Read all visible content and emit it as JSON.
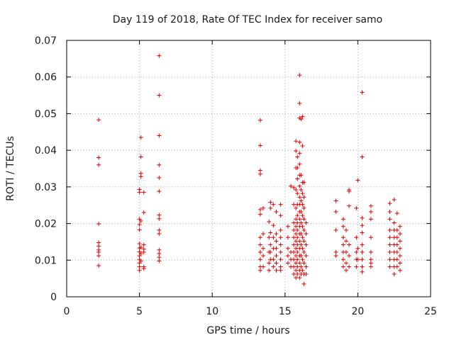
{
  "chart_data": {
    "type": "scatter",
    "title": "Day 119 of 2018, Rate Of TEC Index for receiver samo",
    "xlabel": "GPS time / hours",
    "ylabel": "ROTI / TECUs",
    "xlim": [
      0,
      25
    ],
    "ylim": [
      0,
      0.07
    ],
    "xticks": [
      0,
      5,
      10,
      15,
      20,
      25
    ],
    "xtick_labels": [
      "0",
      "5",
      "10",
      "15",
      "20",
      "25"
    ],
    "yticks": [
      0,
      0.01,
      0.02,
      0.03,
      0.04,
      0.05,
      0.06,
      0.07
    ],
    "ytick_labels": [
      "0",
      "0.01",
      "0.02",
      "0.03",
      "0.04",
      "0.05",
      "0.06",
      "0.07"
    ],
    "grid": true,
    "marker": "+",
    "color": "#e00000",
    "series": [
      {
        "name": "ROTI",
        "points": [
          [
            2.2,
            0.0483
          ],
          [
            2.2,
            0.038
          ],
          [
            2.2,
            0.036
          ],
          [
            2.2,
            0.0199
          ],
          [
            2.2,
            0.0148
          ],
          [
            2.2,
            0.0138
          ],
          [
            2.2,
            0.0128
          ],
          [
            2.2,
            0.0122
          ],
          [
            2.2,
            0.0112
          ],
          [
            2.2,
            0.0085
          ],
          [
            5.0,
            0.0293
          ],
          [
            5.0,
            0.0285
          ],
          [
            5.0,
            0.0212
          ],
          [
            5.0,
            0.0197
          ],
          [
            5.0,
            0.0183
          ],
          [
            5.0,
            0.0145
          ],
          [
            5.0,
            0.0133
          ],
          [
            5.0,
            0.0123
          ],
          [
            5.0,
            0.0112
          ],
          [
            5.0,
            0.0102
          ],
          [
            5.0,
            0.0092
          ],
          [
            5.0,
            0.0082
          ],
          [
            5.0,
            0.0072
          ],
          [
            5.1,
            0.0435
          ],
          [
            5.1,
            0.0382
          ],
          [
            5.1,
            0.0337
          ],
          [
            5.1,
            0.0328
          ],
          [
            5.1,
            0.0207
          ],
          [
            5.1,
            0.0135
          ],
          [
            5.1,
            0.0118
          ],
          [
            5.1,
            0.0098
          ],
          [
            5.3,
            0.0285
          ],
          [
            5.3,
            0.023
          ],
          [
            5.3,
            0.0142
          ],
          [
            5.3,
            0.013
          ],
          [
            5.3,
            0.0122
          ],
          [
            5.3,
            0.0082
          ],
          [
            5.3,
            0.0077
          ],
          [
            6.35,
            0.0658
          ],
          [
            6.35,
            0.055
          ],
          [
            6.35,
            0.044
          ],
          [
            6.35,
            0.036
          ],
          [
            6.35,
            0.0325
          ],
          [
            6.35,
            0.0288
          ],
          [
            6.35,
            0.0223
          ],
          [
            6.35,
            0.0213
          ],
          [
            6.35,
            0.0182
          ],
          [
            6.35,
            0.0172
          ],
          [
            6.35,
            0.0128
          ],
          [
            6.35,
            0.0118
          ],
          [
            6.35,
            0.0108
          ],
          [
            6.35,
            0.0098
          ],
          [
            13.3,
            0.0482
          ],
          [
            13.3,
            0.0413
          ],
          [
            13.3,
            0.0345
          ],
          [
            13.3,
            0.0335
          ],
          [
            13.3,
            0.0238
          ],
          [
            13.3,
            0.0225
          ],
          [
            13.3,
            0.0162
          ],
          [
            13.3,
            0.0142
          ],
          [
            13.3,
            0.0122
          ],
          [
            13.3,
            0.0102
          ],
          [
            13.3,
            0.0082
          ],
          [
            13.3,
            0.0072
          ],
          [
            13.5,
            0.0242
          ],
          [
            13.5,
            0.0172
          ],
          [
            13.5,
            0.0132
          ],
          [
            13.5,
            0.0112
          ],
          [
            13.5,
            0.0082
          ],
          [
            13.9,
            0.0205
          ],
          [
            13.9,
            0.0162
          ],
          [
            13.9,
            0.0122
          ],
          [
            13.9,
            0.0092
          ],
          [
            13.9,
            0.0072
          ],
          [
            14.0,
            0.0258
          ],
          [
            14.0,
            0.0242
          ],
          [
            14.0,
            0.0175
          ],
          [
            14.0,
            0.0142
          ],
          [
            14.0,
            0.0122
          ],
          [
            14.0,
            0.0102
          ],
          [
            14.2,
            0.0252
          ],
          [
            14.2,
            0.0195
          ],
          [
            14.2,
            0.0162
          ],
          [
            14.2,
            0.0132
          ],
          [
            14.2,
            0.0102
          ],
          [
            14.2,
            0.0082
          ],
          [
            14.4,
            0.0232
          ],
          [
            14.4,
            0.0172
          ],
          [
            14.4,
            0.0152
          ],
          [
            14.4,
            0.0132
          ],
          [
            14.4,
            0.0112
          ],
          [
            14.4,
            0.0092
          ],
          [
            14.4,
            0.0072
          ],
          [
            14.7,
            0.0252
          ],
          [
            14.7,
            0.0222
          ],
          [
            14.7,
            0.0182
          ],
          [
            14.7,
            0.0162
          ],
          [
            14.7,
            0.0142
          ],
          [
            14.7,
            0.0122
          ],
          [
            14.7,
            0.0102
          ],
          [
            14.7,
            0.0082
          ],
          [
            14.7,
            0.0072
          ],
          [
            15.2,
            0.0192
          ],
          [
            15.2,
            0.0162
          ],
          [
            15.2,
            0.0132
          ],
          [
            15.2,
            0.0112
          ],
          [
            15.2,
            0.0092
          ],
          [
            15.4,
            0.0302
          ],
          [
            15.4,
            0.0122
          ],
          [
            15.4,
            0.0102
          ],
          [
            15.4,
            0.0082
          ],
          [
            15.6,
            0.0298
          ],
          [
            15.6,
            0.0252
          ],
          [
            15.6,
            0.0202
          ],
          [
            15.6,
            0.0182
          ],
          [
            15.6,
            0.0162
          ],
          [
            15.6,
            0.0142
          ],
          [
            15.6,
            0.0122
          ],
          [
            15.6,
            0.0102
          ],
          [
            15.6,
            0.0082
          ],
          [
            15.6,
            0.0062
          ],
          [
            15.75,
            0.0425
          ],
          [
            15.75,
            0.0398
          ],
          [
            15.75,
            0.0352
          ],
          [
            15.75,
            0.0292
          ],
          [
            15.75,
            0.0242
          ],
          [
            15.75,
            0.0212
          ],
          [
            15.75,
            0.0192
          ],
          [
            15.75,
            0.0172
          ],
          [
            15.75,
            0.0152
          ],
          [
            15.75,
            0.0132
          ],
          [
            15.75,
            0.0112
          ],
          [
            15.75,
            0.0092
          ],
          [
            15.75,
            0.0072
          ],
          [
            15.75,
            0.0052
          ],
          [
            15.85,
            0.0382
          ],
          [
            15.85,
            0.0352
          ],
          [
            15.85,
            0.0322
          ],
          [
            15.85,
            0.0282
          ],
          [
            15.85,
            0.0252
          ],
          [
            15.85,
            0.0222
          ],
          [
            15.85,
            0.0202
          ],
          [
            15.85,
            0.0182
          ],
          [
            15.85,
            0.0162
          ],
          [
            15.85,
            0.0142
          ],
          [
            15.85,
            0.0122
          ],
          [
            15.85,
            0.0102
          ],
          [
            15.85,
            0.0082
          ],
          [
            15.85,
            0.0062
          ],
          [
            16.0,
            0.0605
          ],
          [
            16.0,
            0.0528
          ],
          [
            16.0,
            0.0488
          ],
          [
            16.0,
            0.0422
          ],
          [
            16.0,
            0.0392
          ],
          [
            16.0,
            0.0362
          ],
          [
            16.0,
            0.0332
          ],
          [
            16.0,
            0.0302
          ],
          [
            16.0,
            0.0272
          ],
          [
            16.0,
            0.0252
          ],
          [
            16.0,
            0.0232
          ],
          [
            16.0,
            0.0212
          ],
          [
            16.0,
            0.0192
          ],
          [
            16.0,
            0.0172
          ],
          [
            16.0,
            0.0152
          ],
          [
            16.0,
            0.0132
          ],
          [
            16.0,
            0.0112
          ],
          [
            16.0,
            0.0092
          ],
          [
            16.0,
            0.0072
          ],
          [
            16.0,
            0.0052
          ],
          [
            16.1,
            0.0485
          ],
          [
            16.1,
            0.0332
          ],
          [
            16.1,
            0.0292
          ],
          [
            16.1,
            0.0262
          ],
          [
            16.1,
            0.0232
          ],
          [
            16.1,
            0.0202
          ],
          [
            16.1,
            0.0172
          ],
          [
            16.1,
            0.0142
          ],
          [
            16.1,
            0.0112
          ],
          [
            16.1,
            0.0082
          ],
          [
            16.1,
            0.0062
          ],
          [
            16.2,
            0.0492
          ],
          [
            16.2,
            0.0412
          ],
          [
            16.2,
            0.0312
          ],
          [
            16.2,
            0.0282
          ],
          [
            16.2,
            0.0252
          ],
          [
            16.2,
            0.0222
          ],
          [
            16.2,
            0.0192
          ],
          [
            16.2,
            0.0162
          ],
          [
            16.2,
            0.0132
          ],
          [
            16.2,
            0.0102
          ],
          [
            16.2,
            0.0072
          ],
          [
            16.3,
            0.0312
          ],
          [
            16.3,
            0.0272
          ],
          [
            16.3,
            0.0242
          ],
          [
            16.3,
            0.0212
          ],
          [
            16.3,
            0.0182
          ],
          [
            16.3,
            0.0152
          ],
          [
            16.3,
            0.0122
          ],
          [
            16.3,
            0.0092
          ],
          [
            16.3,
            0.0062
          ],
          [
            16.3,
            0.0035
          ],
          [
            16.45,
            0.0202
          ],
          [
            16.45,
            0.0172
          ],
          [
            16.45,
            0.0142
          ],
          [
            16.45,
            0.0112
          ],
          [
            16.45,
            0.0082
          ],
          [
            16.45,
            0.0062
          ],
          [
            18.5,
            0.0262
          ],
          [
            18.5,
            0.0232
          ],
          [
            18.5,
            0.0182
          ],
          [
            18.5,
            0.0122
          ],
          [
            18.5,
            0.0112
          ],
          [
            19.0,
            0.0212
          ],
          [
            19.0,
            0.0192
          ],
          [
            19.0,
            0.0162
          ],
          [
            19.0,
            0.0142
          ],
          [
            19.0,
            0.0122
          ],
          [
            19.0,
            0.0102
          ],
          [
            19.0,
            0.0082
          ],
          [
            19.2,
            0.0182
          ],
          [
            19.2,
            0.0152
          ],
          [
            19.2,
            0.0122
          ],
          [
            19.2,
            0.0092
          ],
          [
            19.2,
            0.0072
          ],
          [
            19.4,
            0.0292
          ],
          [
            19.4,
            0.0288
          ],
          [
            19.4,
            0.0248
          ],
          [
            19.4,
            0.0142
          ],
          [
            19.4,
            0.0112
          ],
          [
            19.4,
            0.0082
          ],
          [
            19.9,
            0.0242
          ],
          [
            19.9,
            0.0162
          ],
          [
            19.9,
            0.0122
          ],
          [
            19.9,
            0.0102
          ],
          [
            19.9,
            0.0082
          ],
          [
            20.0,
            0.0318
          ],
          [
            20.0,
            0.0132
          ],
          [
            20.0,
            0.0102
          ],
          [
            20.3,
            0.0558
          ],
          [
            20.3,
            0.0382
          ],
          [
            20.3,
            0.0215
          ],
          [
            20.3,
            0.0195
          ],
          [
            20.3,
            0.0175
          ],
          [
            20.3,
            0.0142
          ],
          [
            20.3,
            0.0122
          ],
          [
            20.3,
            0.0102
          ],
          [
            20.3,
            0.0082
          ],
          [
            20.3,
            0.0068
          ],
          [
            20.9,
            0.0248
          ],
          [
            20.9,
            0.0232
          ],
          [
            20.9,
            0.0212
          ],
          [
            20.9,
            0.0162
          ],
          [
            20.9,
            0.0122
          ],
          [
            20.9,
            0.0102
          ],
          [
            20.9,
            0.0092
          ],
          [
            20.9,
            0.0082
          ],
          [
            22.2,
            0.0255
          ],
          [
            22.2,
            0.0232
          ],
          [
            22.2,
            0.0212
          ],
          [
            22.2,
            0.0182
          ],
          [
            22.2,
            0.0162
          ],
          [
            22.2,
            0.0142
          ],
          [
            22.2,
            0.0122
          ],
          [
            22.2,
            0.0102
          ],
          [
            22.2,
            0.0082
          ],
          [
            22.5,
            0.0265
          ],
          [
            22.5,
            0.0202
          ],
          [
            22.5,
            0.0182
          ],
          [
            22.5,
            0.0162
          ],
          [
            22.5,
            0.0142
          ],
          [
            22.5,
            0.0122
          ],
          [
            22.5,
            0.0102
          ],
          [
            22.5,
            0.0082
          ],
          [
            22.5,
            0.0062
          ],
          [
            22.7,
            0.0228
          ],
          [
            22.7,
            0.0182
          ],
          [
            22.7,
            0.0162
          ],
          [
            22.7,
            0.0142
          ],
          [
            22.7,
            0.0122
          ],
          [
            22.7,
            0.0102
          ],
          [
            22.7,
            0.0082
          ],
          [
            22.9,
            0.0192
          ],
          [
            22.9,
            0.0172
          ],
          [
            22.9,
            0.0152
          ],
          [
            22.9,
            0.0132
          ],
          [
            22.9,
            0.0112
          ],
          [
            22.9,
            0.0092
          ],
          [
            22.9,
            0.0072
          ]
        ]
      }
    ]
  }
}
